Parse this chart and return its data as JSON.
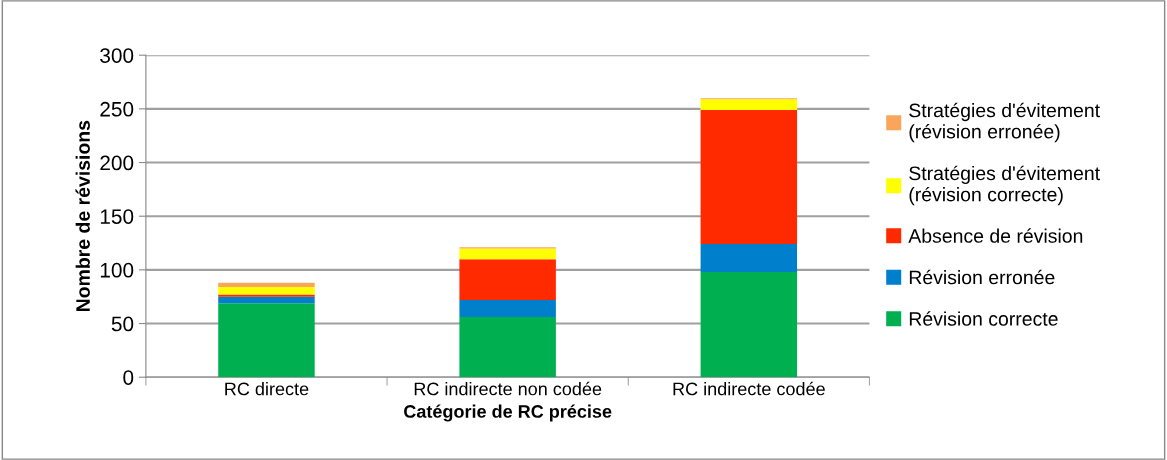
{
  "chart_data": {
    "type": "bar",
    "stacked": true,
    "xlabel": "Catégorie de RC précise",
    "ylabel": "Nombre de révisions",
    "categories": [
      "RC directe",
      "RC indirecte non codée",
      "RC indirecte codée"
    ],
    "series": [
      {
        "name": "Révision correcte",
        "color": "#00b050",
        "values": [
          69,
          56,
          98
        ]
      },
      {
        "name": "Révision erronée",
        "color": "#0080cc",
        "values": [
          6,
          16,
          26
        ]
      },
      {
        "name": "Absence de révision",
        "color": "#ff2a00",
        "values": [
          2,
          38,
          125
        ]
      },
      {
        "name": "Stratégies d'évitement (révision correcte)",
        "color": "#ffff00",
        "values": [
          7,
          10,
          10
        ]
      },
      {
        "name": "Stratégies d'évitement (révision erronée)",
        "color": "#f9a65a",
        "values": [
          4,
          1,
          1
        ]
      }
    ],
    "ylim": [
      0,
      300
    ],
    "yticks": [
      0,
      50,
      100,
      150,
      200,
      250,
      300
    ],
    "grid": "y",
    "legend": "right"
  }
}
